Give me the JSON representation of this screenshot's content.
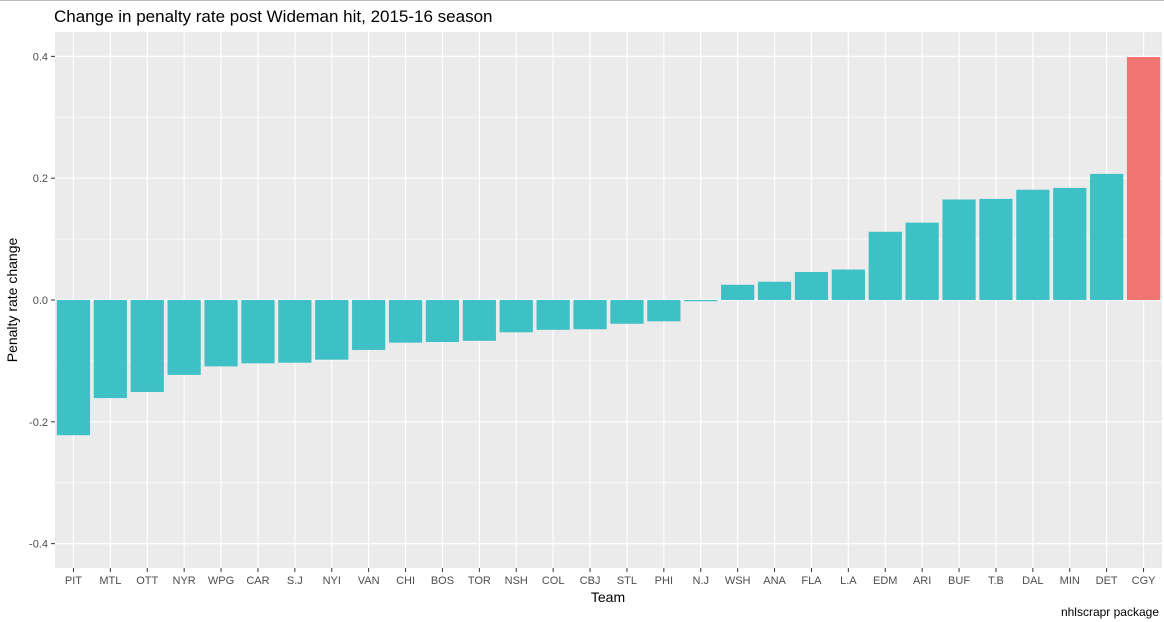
{
  "chart_data": {
    "type": "bar",
    "title": "Change in penalty rate post Wideman hit, 2015-16 season",
    "xlabel": "Team",
    "ylabel": "Penalty rate change",
    "caption": "nhlscrapr package",
    "ylim": [
      -0.44,
      0.44
    ],
    "yticks": [
      -0.4,
      -0.2,
      0.0,
      0.2,
      0.4
    ],
    "ytick_labels": [
      "-0.4",
      "-0.2",
      "0.0",
      "0.2",
      "0.4"
    ],
    "grid": true,
    "legend": "none",
    "colors": {
      "default": "#3ec1c6",
      "highlight": "#f27470",
      "panel": "#ebebeb",
      "grid": "#ffffff"
    },
    "categories": [
      "PIT",
      "MTL",
      "OTT",
      "NYR",
      "WPG",
      "CAR",
      "S.J",
      "NYI",
      "VAN",
      "CHI",
      "BOS",
      "TOR",
      "NSH",
      "COL",
      "CBJ",
      "STL",
      "PHI",
      "N.J",
      "WSH",
      "ANA",
      "FLA",
      "L.A",
      "EDM",
      "ARI",
      "BUF",
      "T.B",
      "DAL",
      "MIN",
      "DET",
      "CGY"
    ],
    "values": [
      -0.222,
      -0.161,
      -0.151,
      -0.123,
      -0.109,
      -0.104,
      -0.103,
      -0.098,
      -0.082,
      -0.07,
      -0.069,
      -0.067,
      -0.053,
      -0.049,
      -0.048,
      -0.039,
      -0.035,
      -0.002,
      0.025,
      0.03,
      0.046,
      0.05,
      0.112,
      0.127,
      0.165,
      0.166,
      0.181,
      0.184,
      0.207,
      0.399
    ],
    "highlight": [
      "CGY"
    ]
  }
}
